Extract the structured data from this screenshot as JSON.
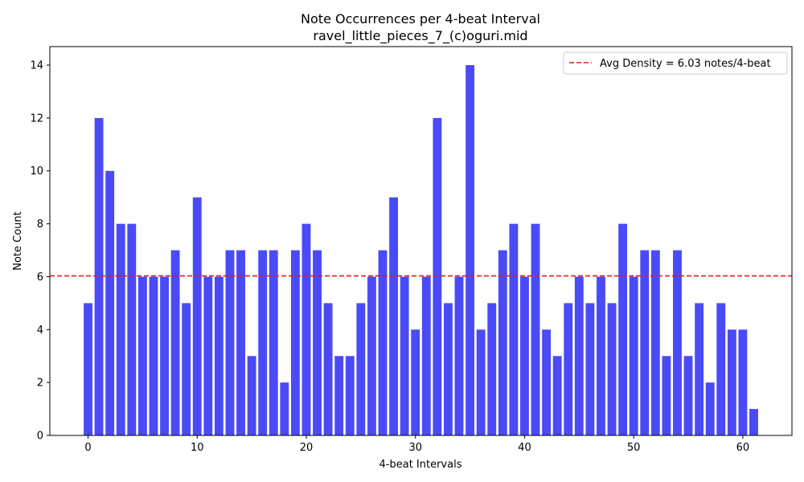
{
  "chart_data": {
    "type": "bar",
    "title": "Note Occurrences per 4-beat Interval",
    "subtitle": "ravel_little_pieces_7_(c)oguri.mid",
    "xlabel": "4-beat Intervals",
    "ylabel": "Note Count",
    "x": [
      0,
      1,
      2,
      3,
      4,
      5,
      6,
      7,
      8,
      9,
      10,
      11,
      12,
      13,
      14,
      15,
      16,
      17,
      18,
      19,
      20,
      21,
      22,
      23,
      24,
      25,
      26,
      27,
      28,
      29,
      30,
      31,
      32,
      33,
      34,
      35,
      36,
      37,
      38,
      39,
      40,
      41,
      42,
      43,
      44,
      45,
      46,
      47,
      48,
      49,
      50,
      51,
      52,
      53,
      54,
      55,
      56,
      57,
      58,
      59,
      60,
      61
    ],
    "values": [
      5,
      12,
      10,
      8,
      8,
      6,
      6,
      6,
      7,
      5,
      9,
      6,
      6,
      7,
      7,
      3,
      7,
      7,
      2,
      7,
      8,
      7,
      5,
      3,
      3,
      5,
      6,
      7,
      9,
      6,
      4,
      6,
      12,
      5,
      6,
      14,
      4,
      5,
      7,
      8,
      6,
      8,
      4,
      3,
      5,
      6,
      5,
      6,
      5,
      8,
      6,
      7,
      7,
      3,
      7,
      3,
      5,
      2,
      5,
      4,
      4,
      1
    ],
    "xlim": [
      -3.5,
      64.5
    ],
    "ylim": [
      0,
      14.7
    ],
    "xticks": [
      0,
      10,
      20,
      30,
      40,
      50,
      60
    ],
    "yticks": [
      0,
      2,
      4,
      6,
      8,
      10,
      12,
      14
    ],
    "bar_color": "#4a4af7",
    "avg_line": {
      "value": 6.03,
      "color": "#e61a1a",
      "label": "Avg Density = 6.03 notes/4-beat"
    },
    "legend_position": "top-right",
    "grid": false
  }
}
